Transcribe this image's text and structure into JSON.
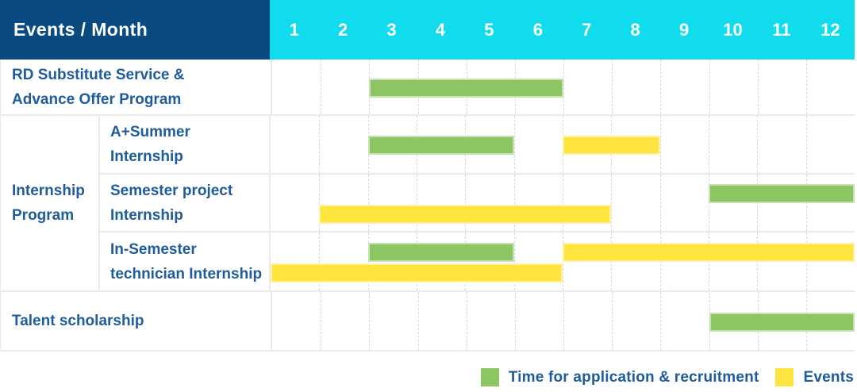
{
  "header": {
    "row_label": "Events / Month",
    "bg": "#094A80",
    "months_bg": "#10DCEE",
    "text_color": "#FFFFFF"
  },
  "colors": {
    "label_text": "#1E5C9B",
    "grid_border": "#EAEAEA",
    "gridline_dashed": "#D9D9D9"
  },
  "chart_data": {
    "type": "gantt",
    "x_unit": "month",
    "columns": [
      "1",
      "2",
      "3",
      "4",
      "5",
      "6",
      "7",
      "8",
      "9",
      "10",
      "11",
      "12"
    ],
    "xlim": [
      1,
      12
    ],
    "grid": "dashed-vertical-per-month",
    "bar_kinds": {
      "application": {
        "color": "#8CC663",
        "legend_label": "Time for application & recruitment"
      },
      "event": {
        "color": "#FFE33E",
        "legend_label": "Events"
      }
    },
    "rows": [
      {
        "id": "rd-substitute",
        "group": "",
        "label": "RD Substitute Service & Advance Offer Program",
        "label_lines": [
          "RD Substitute Service &",
          "Advance Offer Program"
        ],
        "bars": [
          {
            "kind": "application",
            "start_month": 3,
            "end_month": 6,
            "line": "single"
          }
        ]
      },
      {
        "id": "a-plus-summer-internship",
        "group": "Internship Program",
        "group_lines": [
          "Internship",
          "Program"
        ],
        "label": "A+Summer Internship",
        "label_lines": [
          "A+Summer",
          "Internship"
        ],
        "bars": [
          {
            "kind": "application",
            "start_month": 3,
            "end_month": 5,
            "line": "single"
          },
          {
            "kind": "event",
            "start_month": 7,
            "end_month": 8,
            "line": "single"
          }
        ]
      },
      {
        "id": "semester-project-internship",
        "group": "Internship Program",
        "label": "Semester project Internship",
        "label_lines": [
          "Semester project",
          "Internship"
        ],
        "bars": [
          {
            "kind": "application",
            "start_month": 10,
            "end_month": 12,
            "line": "top"
          },
          {
            "kind": "event",
            "start_month": 2,
            "end_month": 7,
            "line": "bottom"
          }
        ]
      },
      {
        "id": "in-semester-technician-internship",
        "group": "Internship Program",
        "label": "In-Semester technician Internship",
        "label_lines": [
          "In-Semester",
          "technician Internship"
        ],
        "bars": [
          {
            "kind": "application",
            "start_month": 3,
            "end_month": 5,
            "line": "top"
          },
          {
            "kind": "event",
            "start_month": 7,
            "end_month": 12,
            "line": "top"
          },
          {
            "kind": "event",
            "start_month": 1,
            "end_month": 6,
            "line": "bottom"
          }
        ]
      },
      {
        "id": "talent-scholarship",
        "group": "",
        "label": "Talent scholarship",
        "label_lines": [
          "Talent scholarship"
        ],
        "bars": [
          {
            "kind": "application",
            "start_month": 10,
            "end_month": 12,
            "line": "single"
          }
        ]
      }
    ]
  },
  "legend": {
    "items": [
      {
        "kind": "application",
        "label": "Time for application & recruitment"
      },
      {
        "kind": "event",
        "label": "Events"
      }
    ]
  }
}
